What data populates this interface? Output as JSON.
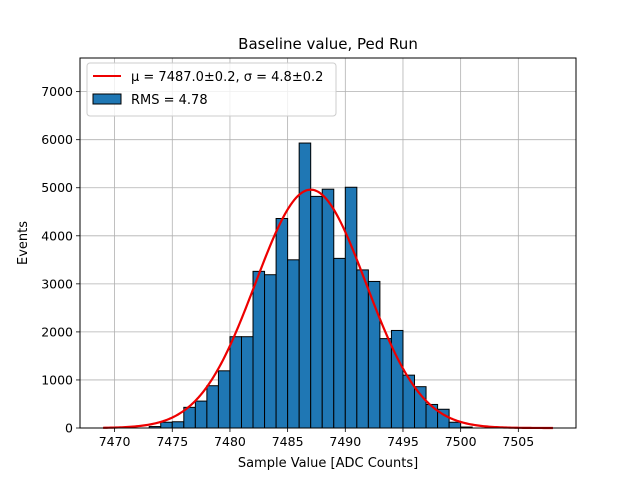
{
  "chart_data": {
    "type": "bar",
    "title": "Baseline value, Ped Run",
    "xlabel": "Sample Value [ADC Counts]",
    "ylabel": "Events",
    "xlim": [
      7467.0,
      7510.0
    ],
    "ylim": [
      0,
      7700
    ],
    "xticks": [
      7470,
      7475,
      7480,
      7485,
      7490,
      7495,
      7500,
      7505
    ],
    "yticks": [
      0,
      1000,
      2000,
      3000,
      4000,
      5000,
      6000,
      7000
    ],
    "grid": true,
    "legend_position": "top-left",
    "bin_width": 1,
    "bins": [
      {
        "x0": 7473,
        "value": 30
      },
      {
        "x0": 7474,
        "value": 120
      },
      {
        "x0": 7475,
        "value": 130
      },
      {
        "x0": 7476,
        "value": 430
      },
      {
        "x0": 7477,
        "value": 560
      },
      {
        "x0": 7478,
        "value": 880
      },
      {
        "x0": 7479,
        "value": 1190
      },
      {
        "x0": 7480,
        "value": 1900
      },
      {
        "x0": 7481,
        "value": 1900
      },
      {
        "x0": 7482,
        "value": 3260
      },
      {
        "x0": 7483,
        "value": 3190
      },
      {
        "x0": 7484,
        "value": 4360
      },
      {
        "x0": 7485,
        "value": 3500
      },
      {
        "x0": 7486,
        "value": 5930
      },
      {
        "x0": 7487,
        "value": 4820
      },
      {
        "x0": 7488,
        "value": 4970
      },
      {
        "x0": 7489,
        "value": 3530
      },
      {
        "x0": 7490,
        "value": 5010
      },
      {
        "x0": 7491,
        "value": 3290
      },
      {
        "x0": 7492,
        "value": 3050
      },
      {
        "x0": 7493,
        "value": 1860
      },
      {
        "x0": 7494,
        "value": 2030
      },
      {
        "x0": 7495,
        "value": 1100
      },
      {
        "x0": 7496,
        "value": 860
      },
      {
        "x0": 7497,
        "value": 490
      },
      {
        "x0": 7498,
        "value": 390
      },
      {
        "x0": 7499,
        "value": 120
      },
      {
        "x0": 7500,
        "value": 20
      }
    ],
    "fit": {
      "type": "gaussian",
      "mu": 7487.0,
      "sigma": 4.8,
      "amplitude": 4960,
      "x_range": [
        7469,
        7508
      ]
    },
    "legend": [
      {
        "label": "μ = 7487.0±0.2, σ = 4.8±0.2",
        "kind": "line",
        "color": "#ee0000"
      },
      {
        "label": "RMS = 4.78",
        "kind": "bar",
        "color": "#1f77b4"
      }
    ],
    "colors": {
      "bar": "#1f77b4",
      "bar_edge": "#000000",
      "fit": "#ee0000",
      "grid": "#b0b0b0"
    }
  }
}
